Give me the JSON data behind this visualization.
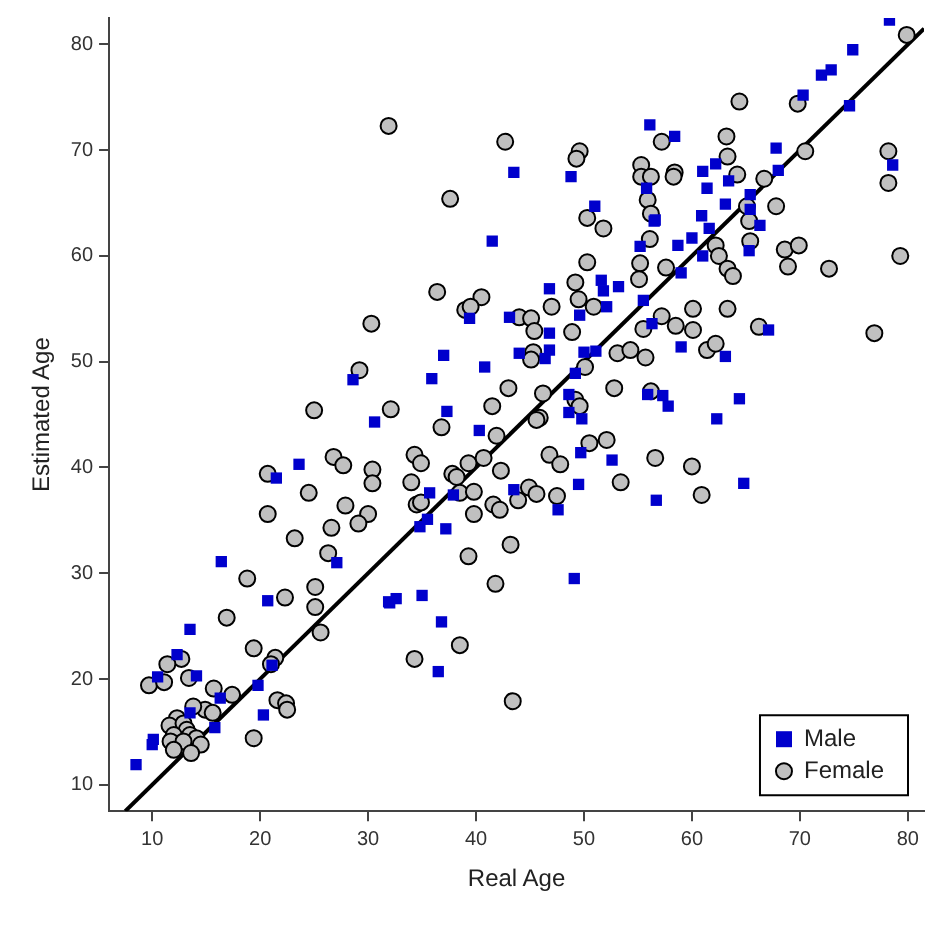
{
  "chart_data": {
    "type": "scatter",
    "xlabel": "Real Age",
    "ylabel": "Estimated Age",
    "xlim": [
      6,
      81.5
    ],
    "ylim": [
      7.5,
      82.5
    ],
    "xticks": [
      10,
      20,
      30,
      40,
      50,
      60,
      70,
      80
    ],
    "yticks": [
      10,
      20,
      30,
      40,
      50,
      60,
      70,
      80
    ],
    "legend": "bottom right",
    "series": [
      {
        "name": "Male",
        "color": "#0000cc",
        "marker": "square",
        "x": [
          28.6,
          30.6,
          56.1,
          43.5,
          48.8,
          55.8,
          56.5,
          51,
          41.5,
          55.2,
          51.6,
          53.2,
          51.8,
          46.8,
          52.1,
          55.5,
          39.4,
          43.1,
          49.6,
          46.8,
          56.3,
          37,
          44,
          46.8,
          46.4,
          50,
          51.1,
          40.8,
          35.9,
          49.2,
          48.6,
          55.9,
          37.3,
          48.6,
          49.8,
          78.3,
          74.9,
          72,
          72.9,
          70.3,
          74.6,
          58.4,
          67.8,
          78.6,
          61,
          62.2,
          63.4,
          61.4,
          68,
          65.4,
          63.1,
          65.4,
          60.9,
          56.6,
          66.3,
          61.6,
          60,
          58.7,
          65.3,
          61,
          59,
          67.1,
          59,
          63.1,
          57.3,
          57.8,
          64.4,
          62.3,
          23.6,
          21.5,
          27.1,
          16.4,
          20.7,
          31.9,
          13.5,
          12.3,
          14.1,
          10.5,
          21.1,
          19.8,
          16.3,
          20.3,
          13.5,
          15.8,
          10.1,
          10,
          8.5,
          40.3,
          49.7,
          52.6,
          56.7,
          49.5,
          35.7,
          37.9,
          43.5,
          47.6,
          35.5,
          34.8,
          37.2,
          49.1,
          32,
          32.6,
          35,
          36.8,
          36.5,
          64.8
        ],
        "values": [
          48.3,
          44.3,
          72.4,
          67.9,
          67.5,
          66.4,
          63.3,
          64.7,
          61.4,
          60.9,
          57.7,
          57.1,
          56.7,
          56.9,
          55.2,
          55.8,
          54.1,
          54.2,
          54.4,
          52.7,
          53.6,
          50.6,
          50.8,
          51.1,
          50.3,
          50.9,
          51,
          49.5,
          48.4,
          48.9,
          46.9,
          46.9,
          45.3,
          45.2,
          44.6,
          82.3,
          79.5,
          77.1,
          77.6,
          75.2,
          74.2,
          71.3,
          70.2,
          68.6,
          68,
          68.7,
          67.1,
          66.4,
          68.1,
          65.8,
          64.9,
          64.4,
          63.8,
          63.4,
          62.9,
          62.6,
          61.7,
          61,
          60.5,
          60,
          58.4,
          53,
          51.4,
          50.5,
          46.8,
          45.8,
          46.5,
          44.6,
          40.3,
          39,
          31,
          31.1,
          27.4,
          27.3,
          24.7,
          22.3,
          20.3,
          20.2,
          21.3,
          19.4,
          18.2,
          16.6,
          16.8,
          15.4,
          14.3,
          13.8,
          11.9,
          43.5,
          41.4,
          40.7,
          36.9,
          38.4,
          37.6,
          37.4,
          37.9,
          36,
          35.1,
          34.4,
          34.2,
          29.5,
          27.2,
          27.6,
          27.9,
          25.4,
          20.7,
          38.5
        ]
      },
      {
        "name": "Female",
        "color": "#c0c0c0",
        "marker": "circle",
        "x": [
          31.9,
          30.3,
          29.2,
          25,
          32.1,
          42.7,
          49.6,
          49.3,
          55.3,
          55.3,
          56.2,
          55.9,
          56.2,
          37.6,
          50.3,
          51.8,
          56.1,
          50.3,
          55.2,
          55.1,
          49.2,
          36.4,
          40.5,
          49.5,
          47,
          50.9,
          39,
          39.5,
          44,
          45.1,
          45.4,
          48.9,
          55.5,
          45.3,
          45.1,
          53.1,
          54.3,
          55.7,
          50.1,
          43,
          46.2,
          49.2,
          52.8,
          56.2,
          41.5,
          49.6,
          45.9,
          79.9,
          69.8,
          64.4,
          57.2,
          63.2,
          63.3,
          70.5,
          78.2,
          78.2,
          58.4,
          58.3,
          64.2,
          66.7,
          65.1,
          67.8,
          65.3,
          65.4,
          62.2,
          68.6,
          69.9,
          62.5,
          79.3,
          63.3,
          63.8,
          68.9,
          72.7,
          57.6,
          57.2,
          60.1,
          63.3,
          58.5,
          60.1,
          66.2,
          76.9,
          61.4,
          62.2,
          26.8,
          27.7,
          20.7,
          30.4,
          30.4,
          24.5,
          20.7,
          27.9,
          30,
          29.1,
          26.6,
          23.2,
          26.3,
          18.8,
          25.1,
          22.3,
          25.1,
          16.9,
          25.6,
          19.4,
          12.7,
          11.4,
          13.4,
          9.7,
          11.1,
          21.4,
          21,
          15.7,
          17.4,
          21.6,
          22.4,
          22.5,
          14.9,
          15.6,
          13.8,
          12.3,
          11.6,
          12.9,
          13.2,
          12,
          13.5,
          14.1,
          11.7,
          12.9,
          14.5,
          12,
          13.6,
          19.4,
          36.8,
          41.9,
          45.6,
          50.5,
          52.1,
          53.4,
          56.6,
          46.8,
          47.8,
          34.3,
          34.9,
          34,
          37.8,
          38.2,
          39.3,
          40.7,
          42.3,
          38.5,
          39.8,
          44.9,
          45.6,
          43.9,
          47.5,
          34.5,
          34.9,
          41.6,
          42.2,
          39.8,
          43.2,
          39.3,
          41.8,
          38.5,
          34.3,
          43.4,
          60,
          60.9
        ],
        "values": [
          72.3,
          53.6,
          49.2,
          45.4,
          45.5,
          70.8,
          69.9,
          69.2,
          68.6,
          67.5,
          67.5,
          65.3,
          64,
          65.4,
          63.6,
          62.6,
          61.6,
          59.4,
          59.3,
          57.8,
          57.5,
          56.6,
          56.1,
          55.9,
          55.2,
          55.2,
          54.9,
          55.2,
          54.2,
          54.1,
          52.9,
          52.8,
          53.1,
          50.9,
          50.2,
          50.8,
          51.1,
          50.4,
          49.5,
          47.5,
          47,
          46.4,
          47.5,
          47.2,
          45.8,
          45.8,
          44.7,
          80.9,
          74.4,
          74.6,
          70.8,
          71.3,
          69.4,
          69.9,
          69.9,
          66.9,
          67.9,
          67.5,
          67.7,
          67.3,
          64.7,
          64.7,
          63.3,
          61.4,
          61,
          60.6,
          61,
          60,
          60,
          58.8,
          58.1,
          59,
          58.8,
          58.9,
          54.3,
          55,
          55,
          53.4,
          53,
          53.3,
          52.7,
          51.1,
          51.7,
          41,
          40.2,
          39.4,
          39.8,
          38.5,
          37.6,
          35.6,
          36.4,
          35.6,
          34.7,
          34.3,
          33.3,
          31.9,
          29.5,
          28.7,
          27.7,
          26.8,
          25.8,
          24.4,
          22.9,
          21.9,
          21.4,
          20.1,
          19.4,
          19.7,
          22,
          21.4,
          19.1,
          18.5,
          18,
          17.7,
          17.1,
          17.1,
          16.8,
          17.4,
          16.3,
          15.6,
          15.8,
          15.2,
          14.7,
          14.7,
          14.4,
          14.1,
          14.1,
          13.8,
          13.3,
          13,
          14.4,
          43.8,
          43,
          44.5,
          42.3,
          42.6,
          38.6,
          40.9,
          41.2,
          40.3,
          41.2,
          40.4,
          38.6,
          39.4,
          39.1,
          40.4,
          40.9,
          39.7,
          37.6,
          37.7,
          38.1,
          37.5,
          36.9,
          37.3,
          36.5,
          36.7,
          36.5,
          36,
          35.6,
          32.7,
          31.6,
          29,
          23.2,
          21.9,
          17.9,
          40.1,
          37.4
        ]
      },
      {
        "type": "line",
        "color": "#000000",
        "marker": "none",
        "x": [
          7.5,
          81.5
        ],
        "values": [
          7.5,
          81.5
        ]
      }
    ]
  }
}
